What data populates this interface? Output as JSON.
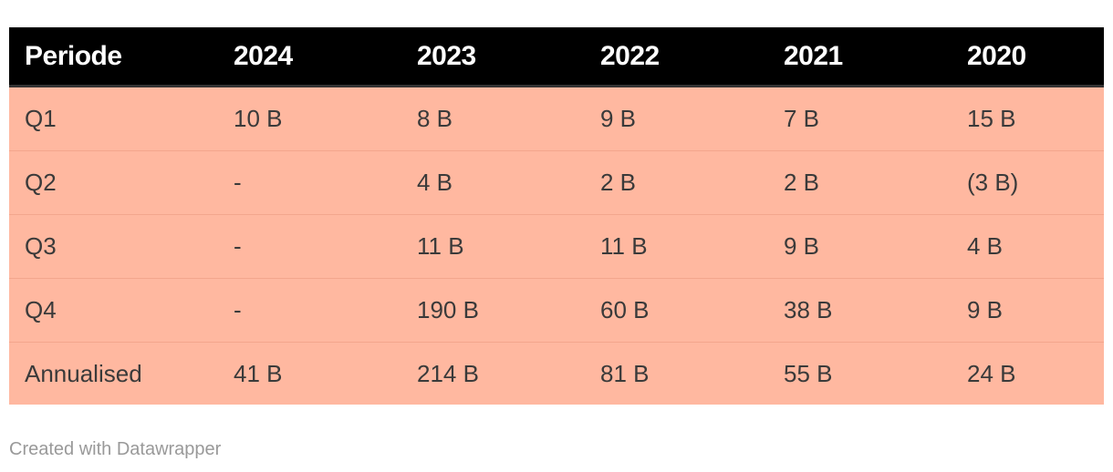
{
  "chart_data": {
    "type": "table",
    "columns": [
      "Periode",
      "2024",
      "2023",
      "2022",
      "2021",
      "2020"
    ],
    "rows": [
      [
        "Q1",
        "10 B",
        "8 B",
        "9 B",
        "7 B",
        "15 B"
      ],
      [
        "Q2",
        "-",
        "4 B",
        "2 B",
        "2 B",
        "(3 B)"
      ],
      [
        "Q3",
        "-",
        "11 B",
        "11 B",
        "9 B",
        "4 B"
      ],
      [
        "Q4",
        "-",
        "190 B",
        "60 B",
        "38 B",
        "9 B"
      ],
      [
        "Annualised",
        "41 B",
        "214 B",
        "81 B",
        "55 B",
        "24 B"
      ]
    ],
    "colors": {
      "header_bg": "#000000",
      "header_text": "#ffffff",
      "row_bg": "#ffb8a0"
    }
  },
  "footer": {
    "credit": "Created with Datawrapper"
  }
}
